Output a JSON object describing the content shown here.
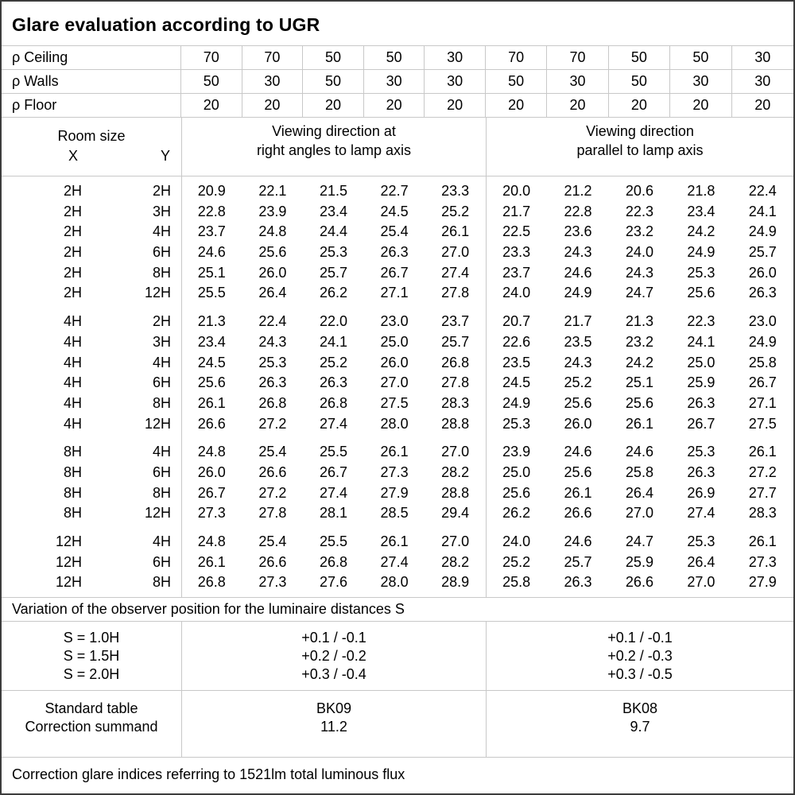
{
  "title": "Glare evaluation according to UGR",
  "colors": {
    "background": "#ffffff",
    "text": "#000000",
    "grid_line": "#c8c8c8",
    "outer_border": "#3c3c3c"
  },
  "reflectance": {
    "rows": [
      {
        "label": "ρ Ceiling",
        "values": [
          "70",
          "70",
          "50",
          "50",
          "30",
          "70",
          "70",
          "50",
          "50",
          "30"
        ]
      },
      {
        "label": "ρ Walls",
        "values": [
          "50",
          "30",
          "50",
          "30",
          "30",
          "50",
          "30",
          "50",
          "30",
          "30"
        ]
      },
      {
        "label": "ρ Floor",
        "values": [
          "20",
          "20",
          "20",
          "20",
          "20",
          "20",
          "20",
          "20",
          "20",
          "20"
        ]
      }
    ]
  },
  "header": {
    "room_size": "Room size",
    "x_label": "X",
    "y_label": "Y",
    "right_angles_line1": "Viewing direction at",
    "right_angles_line2": "right angles to lamp axis",
    "parallel_line1": "Viewing direction",
    "parallel_line2": "parallel to lamp axis"
  },
  "ugr_table": {
    "sections": [
      {
        "rows": [
          {
            "x": "2H",
            "y": "2H",
            "right_angles": [
              "20.9",
              "22.1",
              "21.5",
              "22.7",
              "23.3"
            ],
            "parallel": [
              "20.0",
              "21.2",
              "20.6",
              "21.8",
              "22.4"
            ]
          },
          {
            "x": "2H",
            "y": "3H",
            "right_angles": [
              "22.8",
              "23.9",
              "23.4",
              "24.5",
              "25.2"
            ],
            "parallel": [
              "21.7",
              "22.8",
              "22.3",
              "23.4",
              "24.1"
            ]
          },
          {
            "x": "2H",
            "y": "4H",
            "right_angles": [
              "23.7",
              "24.8",
              "24.4",
              "25.4",
              "26.1"
            ],
            "parallel": [
              "22.5",
              "23.6",
              "23.2",
              "24.2",
              "24.9"
            ]
          },
          {
            "x": "2H",
            "y": "6H",
            "right_angles": [
              "24.6",
              "25.6",
              "25.3",
              "26.3",
              "27.0"
            ],
            "parallel": [
              "23.3",
              "24.3",
              "24.0",
              "24.9",
              "25.7"
            ]
          },
          {
            "x": "2H",
            "y": "8H",
            "right_angles": [
              "25.1",
              "26.0",
              "25.7",
              "26.7",
              "27.4"
            ],
            "parallel": [
              "23.7",
              "24.6",
              "24.3",
              "25.3",
              "26.0"
            ]
          },
          {
            "x": "2H",
            "y": "12H",
            "right_angles": [
              "25.5",
              "26.4",
              "26.2",
              "27.1",
              "27.8"
            ],
            "parallel": [
              "24.0",
              "24.9",
              "24.7",
              "25.6",
              "26.3"
            ]
          }
        ]
      },
      {
        "rows": [
          {
            "x": "4H",
            "y": "2H",
            "right_angles": [
              "21.3",
              "22.4",
              "22.0",
              "23.0",
              "23.7"
            ],
            "parallel": [
              "20.7",
              "21.7",
              "21.3",
              "22.3",
              "23.0"
            ]
          },
          {
            "x": "4H",
            "y": "3H",
            "right_angles": [
              "23.4",
              "24.3",
              "24.1",
              "25.0",
              "25.7"
            ],
            "parallel": [
              "22.6",
              "23.5",
              "23.2",
              "24.1",
              "24.9"
            ]
          },
          {
            "x": "4H",
            "y": "4H",
            "right_angles": [
              "24.5",
              "25.3",
              "25.2",
              "26.0",
              "26.8"
            ],
            "parallel": [
              "23.5",
              "24.3",
              "24.2",
              "25.0",
              "25.8"
            ]
          },
          {
            "x": "4H",
            "y": "6H",
            "right_angles": [
              "25.6",
              "26.3",
              "26.3",
              "27.0",
              "27.8"
            ],
            "parallel": [
              "24.5",
              "25.2",
              "25.1",
              "25.9",
              "26.7"
            ]
          },
          {
            "x": "4H",
            "y": "8H",
            "right_angles": [
              "26.1",
              "26.8",
              "26.8",
              "27.5",
              "28.3"
            ],
            "parallel": [
              "24.9",
              "25.6",
              "25.6",
              "26.3",
              "27.1"
            ]
          },
          {
            "x": "4H",
            "y": "12H",
            "right_angles": [
              "26.6",
              "27.2",
              "27.4",
              "28.0",
              "28.8"
            ],
            "parallel": [
              "25.3",
              "26.0",
              "26.1",
              "26.7",
              "27.5"
            ]
          }
        ]
      },
      {
        "rows": [
          {
            "x": "8H",
            "y": "4H",
            "right_angles": [
              "24.8",
              "25.4",
              "25.5",
              "26.1",
              "27.0"
            ],
            "parallel": [
              "23.9",
              "24.6",
              "24.6",
              "25.3",
              "26.1"
            ]
          },
          {
            "x": "8H",
            "y": "6H",
            "right_angles": [
              "26.0",
              "26.6",
              "26.7",
              "27.3",
              "28.2"
            ],
            "parallel": [
              "25.0",
              "25.6",
              "25.8",
              "26.3",
              "27.2"
            ]
          },
          {
            "x": "8H",
            "y": "8H",
            "right_angles": [
              "26.7",
              "27.2",
              "27.4",
              "27.9",
              "28.8"
            ],
            "parallel": [
              "25.6",
              "26.1",
              "26.4",
              "26.9",
              "27.7"
            ]
          },
          {
            "x": "8H",
            "y": "12H",
            "right_angles": [
              "27.3",
              "27.8",
              "28.1",
              "28.5",
              "29.4"
            ],
            "parallel": [
              "26.2",
              "26.6",
              "27.0",
              "27.4",
              "28.3"
            ]
          }
        ]
      },
      {
        "rows": [
          {
            "x": "12H",
            "y": "4H",
            "right_angles": [
              "24.8",
              "25.4",
              "25.5",
              "26.1",
              "27.0"
            ],
            "parallel": [
              "24.0",
              "24.6",
              "24.7",
              "25.3",
              "26.1"
            ]
          },
          {
            "x": "12H",
            "y": "6H",
            "right_angles": [
              "26.1",
              "26.6",
              "26.8",
              "27.4",
              "28.2"
            ],
            "parallel": [
              "25.2",
              "25.7",
              "25.9",
              "26.4",
              "27.3"
            ]
          },
          {
            "x": "12H",
            "y": "8H",
            "right_angles": [
              "26.8",
              "27.3",
              "27.6",
              "28.0",
              "28.9"
            ],
            "parallel": [
              "25.8",
              "26.3",
              "26.6",
              "27.0",
              "27.9"
            ]
          }
        ]
      }
    ]
  },
  "variation_note": "Variation of the observer position for the luminaire distances S",
  "s_variation": {
    "rows": [
      {
        "label": "S = 1.0H",
        "right_angles": "+0.1 / -0.1",
        "parallel": "+0.1 / -0.1"
      },
      {
        "label": "S = 1.5H",
        "right_angles": "+0.2 / -0.2",
        "parallel": "+0.2 / -0.3"
      },
      {
        "label": "S = 2.0H",
        "right_angles": "+0.3 / -0.4",
        "parallel": "+0.3 / -0.5"
      }
    ]
  },
  "standard": {
    "table_label": "Standard table",
    "summand_label": "Correction summand",
    "right_angles_table": "BK09",
    "right_angles_summand": "11.2",
    "parallel_table": "BK08",
    "parallel_summand": "9.7"
  },
  "footer_note": "Correction glare indices referring to 1521lm total luminous flux"
}
